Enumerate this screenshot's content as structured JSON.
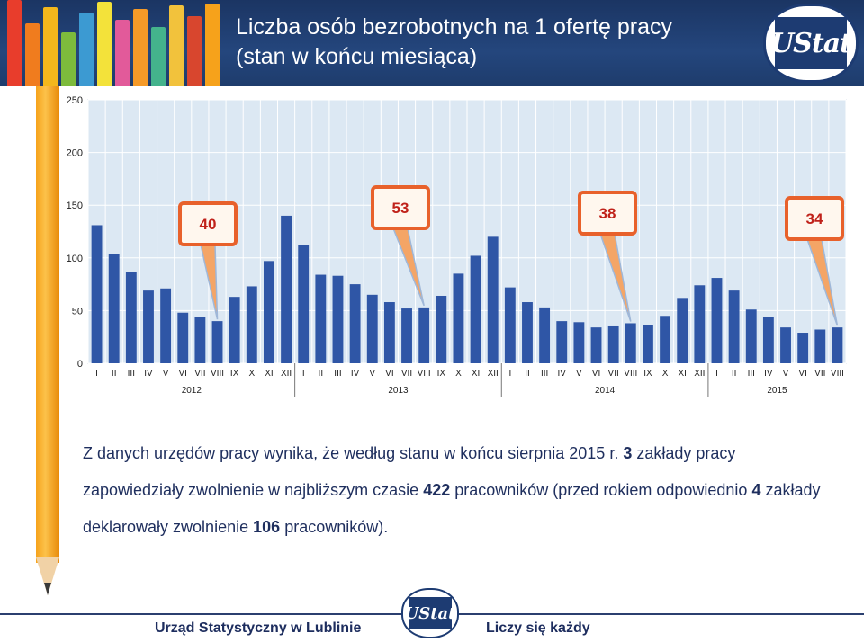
{
  "header": {
    "title_line1": "Liczba osób bezrobotnych na 1 ofertę pracy",
    "title_line2": "(stan w końcu miesiąca)",
    "logo_text": "UStat"
  },
  "colors": {
    "header_bg": "#1e3c6c",
    "bar_fill": "#2f56a6",
    "plot_bg": "#dce8f3",
    "callout_border": "#e8612b",
    "callout_text": "#c0221a",
    "pencil": "#f6a21b"
  },
  "chart_data": {
    "type": "bar",
    "title": "Liczba osób bezrobotnych na 1 ofertę pracy (stan w końcu miesiąca)",
    "ylim": [
      0,
      250
    ],
    "yticks": [
      "0",
      "50",
      "100",
      "150",
      "200",
      "250"
    ],
    "grid": true,
    "categories": [
      "I",
      "II",
      "III",
      "IV",
      "V",
      "VI",
      "VII",
      "VIII",
      "IX",
      "X",
      "XI",
      "XII",
      "I",
      "II",
      "III",
      "IV",
      "V",
      "VI",
      "VII",
      "VIII",
      "IX",
      "X",
      "XI",
      "XII",
      "I",
      "II",
      "III",
      "IV",
      "V",
      "VI",
      "VII",
      "VIII",
      "IX",
      "X",
      "XI",
      "XII",
      "I",
      "II",
      "III",
      "IV",
      "V",
      "VI",
      "VII",
      "VIII"
    ],
    "years": [
      {
        "label": "2012",
        "months": 12
      },
      {
        "label": "2013",
        "months": 12
      },
      {
        "label": "2014",
        "months": 12
      },
      {
        "label": "2015",
        "months": 8
      }
    ],
    "values": [
      131,
      104,
      87,
      69,
      71,
      48,
      44,
      40,
      63,
      73,
      97,
      140,
      112,
      84,
      83,
      75,
      65,
      58,
      52,
      53,
      64,
      85,
      102,
      120,
      72,
      58,
      53,
      40,
      39,
      34,
      35,
      38,
      36,
      45,
      62,
      74,
      81,
      69,
      51,
      44,
      34,
      29,
      32,
      34
    ],
    "callouts": [
      {
        "label": "40",
        "index": 7
      },
      {
        "label": "53",
        "index": 19
      },
      {
        "label": "38",
        "index": 31
      },
      {
        "label": "34",
        "index": 43
      }
    ]
  },
  "text": {
    "p1": "Z danych urzędów pracy wynika, że według stanu w końcu sierpnia 2015 r.",
    "n1": "3",
    "p2": "zakłady pracy zapowiedziały zwolnienie w najbliższym czasie",
    "n2": "422",
    "p3": "pracowników (przed rokiem odpowiednio",
    "n3": "4",
    "p4": "zakłady deklarowały zwolnienie",
    "n4": "106",
    "p5": "pracowników)."
  },
  "footer": {
    "left": "Urząd Statystyczny w Lublinie",
    "right": "Liczy się każdy",
    "logo_text": "UStat"
  }
}
